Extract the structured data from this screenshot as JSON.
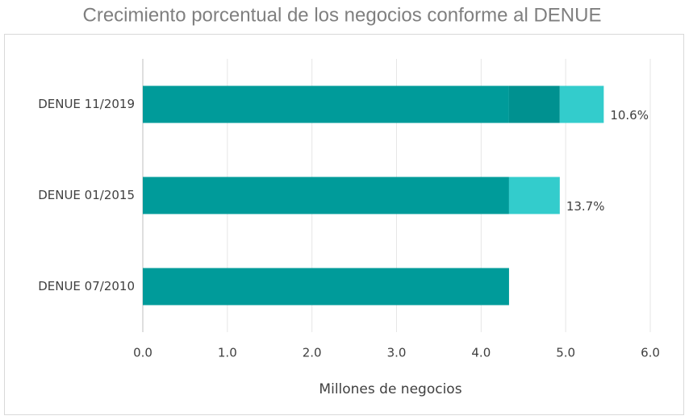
{
  "chart_data": {
    "type": "stacked-barh",
    "title": "Crecimiento porcentual de los negocios conforme al DENUE",
    "x_label": "Millones de negocios",
    "categories": [
      "DENUE 11/2019",
      "DENUE 01/2015",
      "DENUE 07/2010"
    ],
    "series": [
      {
        "color": "#009b9a",
        "values": [
          4.33,
          4.33,
          4.33
        ]
      },
      {
        "color": "#009190",
        "values": [
          0.6,
          null,
          null
        ]
      },
      {
        "color": "#33cccc",
        "values": [
          0.52,
          0.6,
          null
        ]
      }
    ],
    "annotations": [
      "10.6%",
      "13.7%",
      null
    ],
    "xlim": [
      0,
      6
    ],
    "xticks": [
      {
        "value": 0,
        "label": "0.0"
      },
      {
        "value": 1,
        "label": "1.0"
      },
      {
        "value": 2,
        "label": "2.0"
      },
      {
        "value": 3,
        "label": "3.0"
      },
      {
        "value": 4,
        "label": "4.0"
      },
      {
        "value": 5,
        "label": "5.0"
      },
      {
        "value": 6,
        "label": "6.0"
      }
    ],
    "grid": true
  }
}
